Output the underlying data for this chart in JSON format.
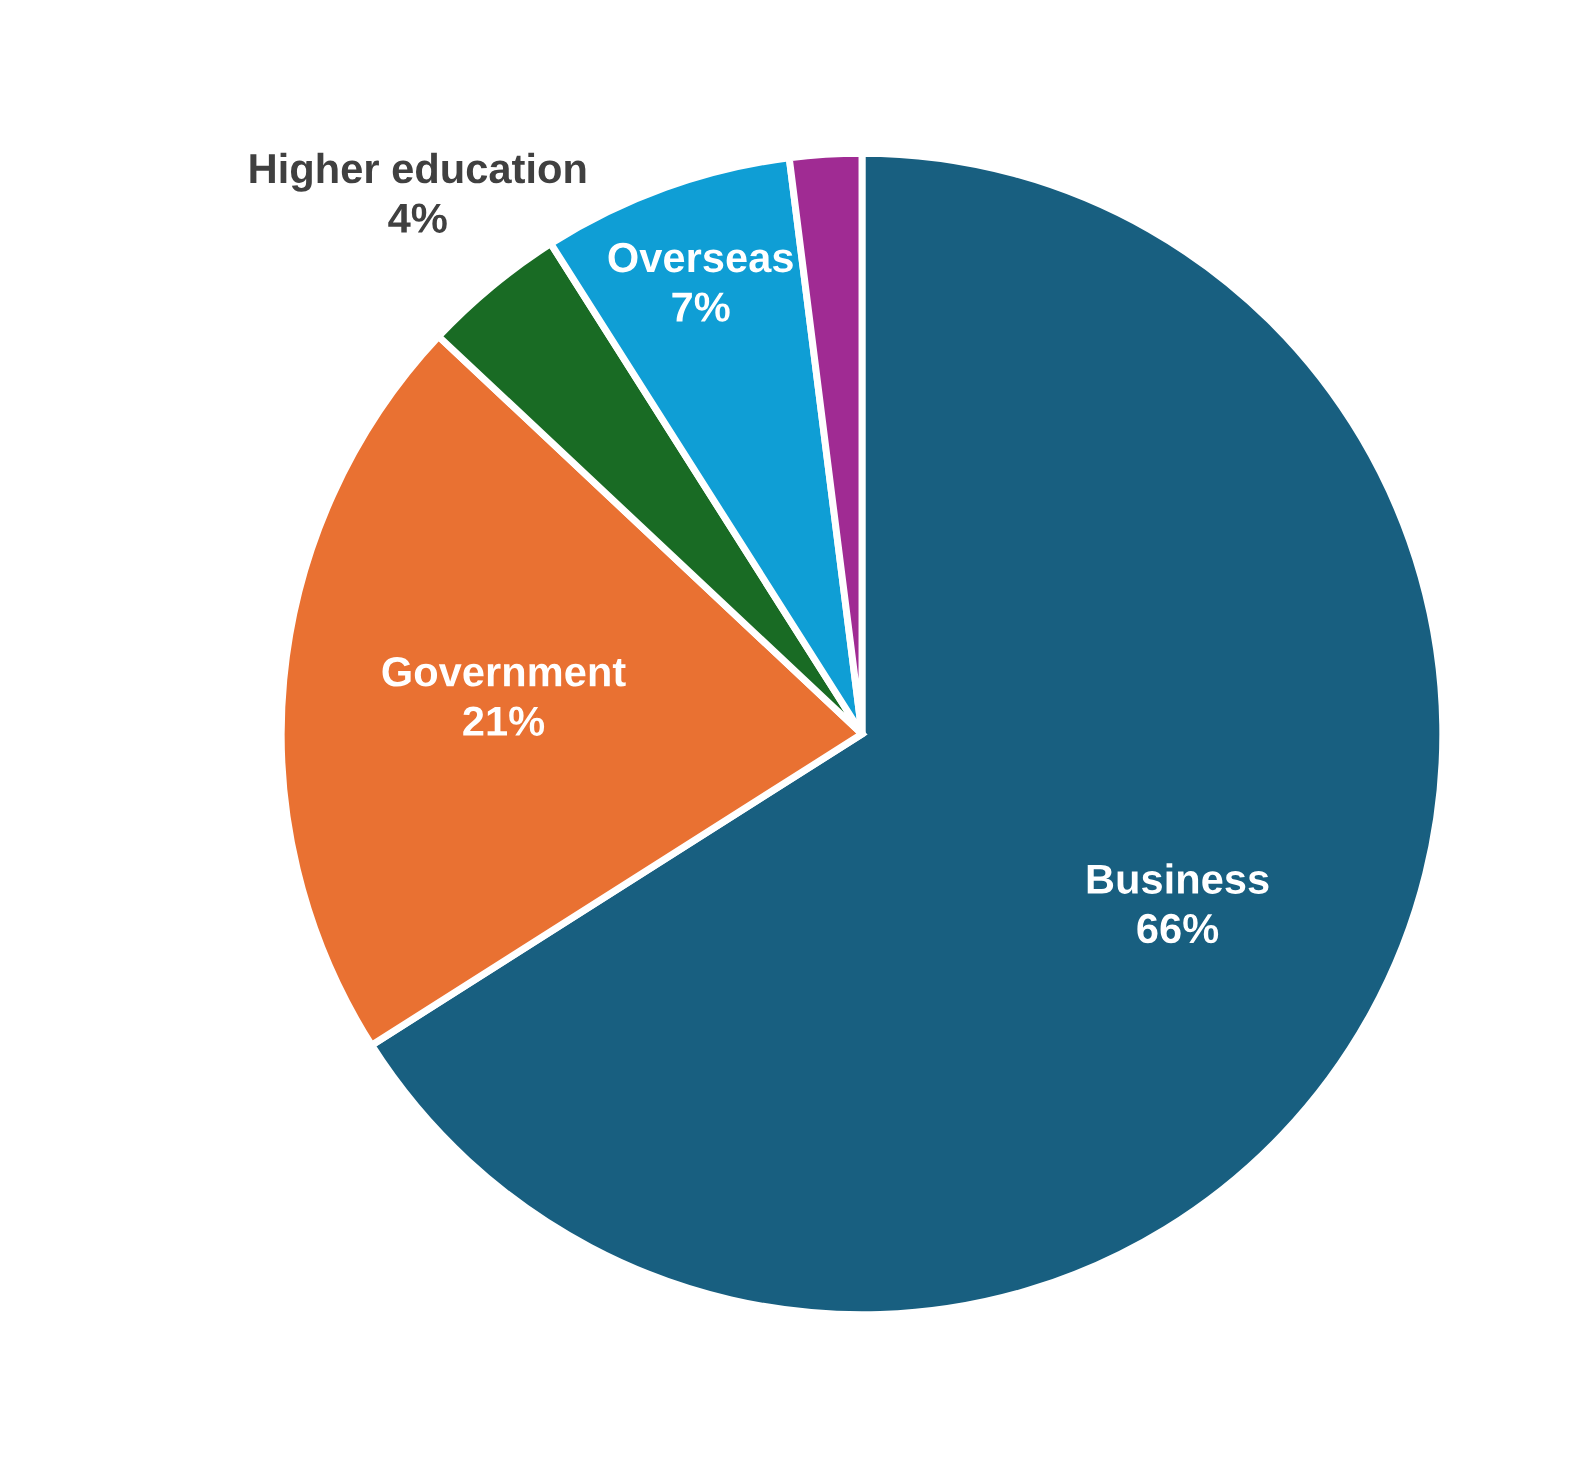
{
  "chart_data": {
    "type": "pie",
    "categories": [
      "Business",
      "Government",
      "Higher education",
      "Overseas",
      null
    ],
    "values": [
      66,
      21,
      4,
      7,
      2
    ],
    "colors": [
      "#185f80",
      "#e97132",
      "#196b24",
      "#0f9ed5",
      "#a02b93"
    ],
    "value_labels": [
      "66%",
      "21%",
      "4%",
      "7%",
      null
    ],
    "legend": false
  }
}
